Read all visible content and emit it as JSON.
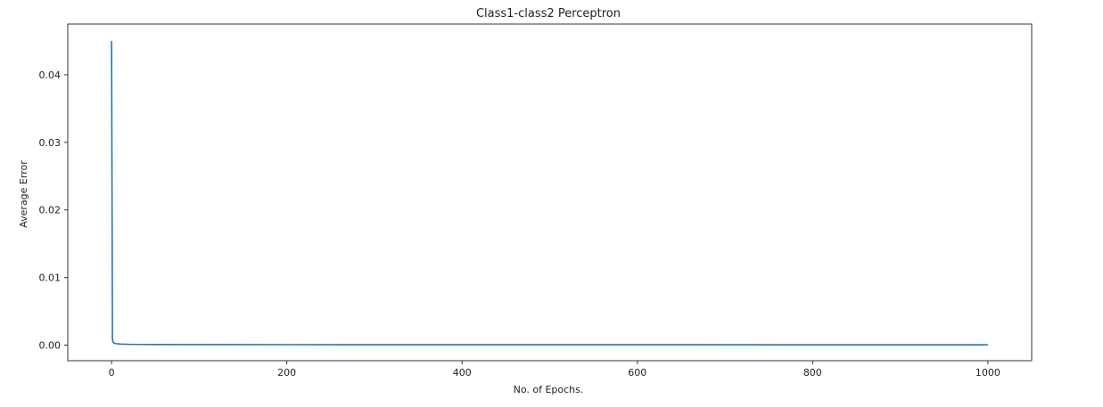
{
  "chart_data": {
    "type": "line",
    "title": "Class1-class2 Perceptron",
    "xlabel": "No. of Epochs.",
    "ylabel": "Average Error",
    "xlim": [
      -50,
      1050
    ],
    "ylim": [
      -0.0023,
      0.0475
    ],
    "x_ticks": [
      0,
      200,
      400,
      600,
      800,
      1000
    ],
    "x_tick_labels": [
      "0",
      "200",
      "400",
      "600",
      "800",
      "1000"
    ],
    "y_ticks": [
      0.0,
      0.01,
      0.02,
      0.03,
      0.04
    ],
    "y_tick_labels": [
      "0.00",
      "0.01",
      "0.02",
      "0.03",
      "0.04"
    ],
    "grid": false,
    "legend": "none",
    "series": [
      {
        "color": "#1f77b4",
        "x": [
          0,
          1,
          2,
          3,
          5,
          10,
          20,
          50,
          100,
          200,
          400,
          600,
          800,
          1000
        ],
        "y": [
          0.045,
          0.0008,
          0.0004,
          0.0003,
          0.00022,
          0.00016,
          0.00012,
          0.0001,
          8e-05,
          7e-05,
          6e-05,
          6e-05,
          5e-05,
          5e-05
        ]
      }
    ]
  }
}
